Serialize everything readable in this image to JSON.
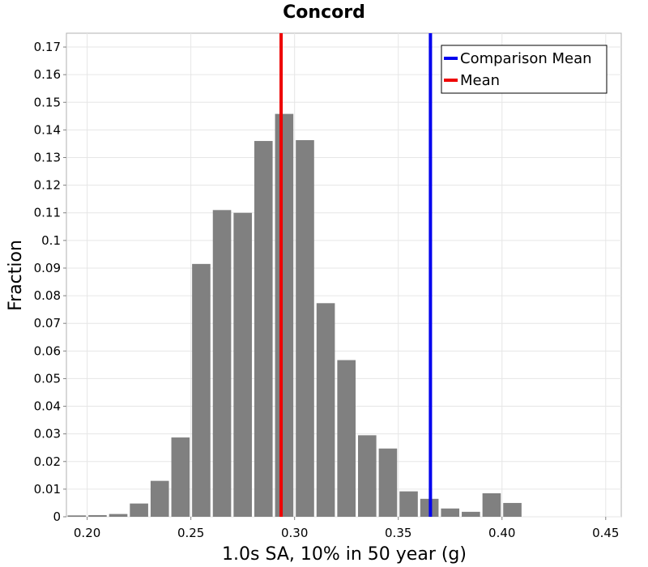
{
  "chart_data": {
    "type": "bar",
    "title": "Concord",
    "xlabel": "1.0s SA, 10% in 50 year (g)",
    "ylabel": "Fraction",
    "xlim": [
      0.19,
      0.4575
    ],
    "ylim": [
      0,
      0.175
    ],
    "bin_width": 0.01,
    "x_ticks": [
      "0.20",
      "0.25",
      "0.30",
      "0.35",
      "0.40",
      "0.45"
    ],
    "y_ticks": [
      "0",
      "0.01",
      "0.02",
      "0.03",
      "0.04",
      "0.05",
      "0.06",
      "0.07",
      "0.08",
      "0.09",
      "0.1",
      "0.11",
      "0.12",
      "0.13",
      "0.14",
      "0.15",
      "0.16",
      "0.17"
    ],
    "bins": [
      {
        "x": 0.195,
        "y": 0.0005
      },
      {
        "x": 0.205,
        "y": 0.0006
      },
      {
        "x": 0.215,
        "y": 0.001
      },
      {
        "x": 0.225,
        "y": 0.0048
      },
      {
        "x": 0.235,
        "y": 0.013
      },
      {
        "x": 0.245,
        "y": 0.0287
      },
      {
        "x": 0.255,
        "y": 0.0915
      },
      {
        "x": 0.265,
        "y": 0.111
      },
      {
        "x": 0.275,
        "y": 0.11
      },
      {
        "x": 0.285,
        "y": 0.136
      },
      {
        "x": 0.295,
        "y": 0.1458
      },
      {
        "x": 0.305,
        "y": 0.1363
      },
      {
        "x": 0.315,
        "y": 0.0773
      },
      {
        "x": 0.325,
        "y": 0.0567
      },
      {
        "x": 0.335,
        "y": 0.0295
      },
      {
        "x": 0.345,
        "y": 0.0247
      },
      {
        "x": 0.355,
        "y": 0.0092
      },
      {
        "x": 0.365,
        "y": 0.0065
      },
      {
        "x": 0.375,
        "y": 0.003
      },
      {
        "x": 0.385,
        "y": 0.0018
      },
      {
        "x": 0.395,
        "y": 0.0085
      },
      {
        "x": 0.405,
        "y": 0.005
      }
    ],
    "bar_color": "#808080",
    "vlines": [
      {
        "name": "Comparison Mean",
        "x": 0.3655,
        "color": "#0000ee"
      },
      {
        "name": "Mean",
        "x": 0.2935,
        "color": "#ee0000"
      }
    ],
    "legend": {
      "position": "top-right",
      "entries": [
        "Comparison Mean",
        "Mean"
      ]
    },
    "grid": true
  }
}
